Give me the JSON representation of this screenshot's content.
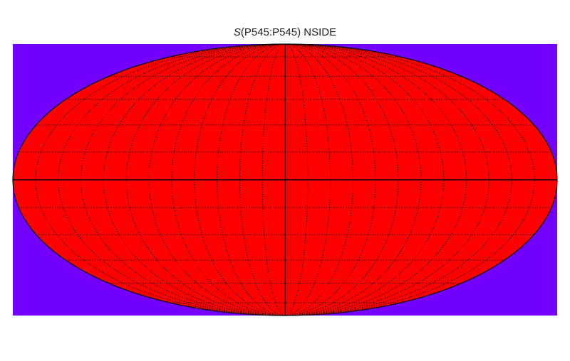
{
  "title": {
    "symbol": "S",
    "text": "(P545:P545) NSIDE"
  },
  "map": {
    "projection": "mollweide",
    "background_color": "#7300ff",
    "fill_color": "#ff0000",
    "graticule_style": "dotted",
    "meridian_step_deg": 15,
    "parallel_step_deg": 15
  }
}
